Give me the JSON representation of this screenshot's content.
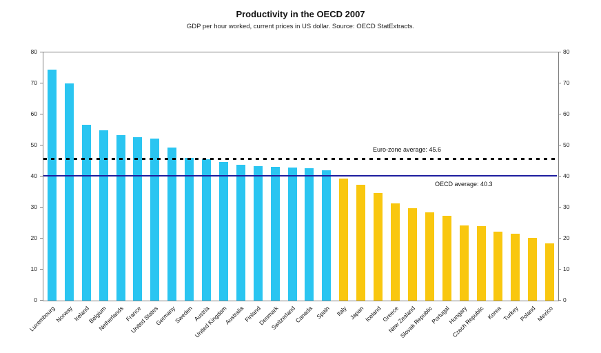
{
  "title": "Productivity in the OECD 2007",
  "subtitle": "GDP per hour worked, current prices in US dollar. Source: OECD StatExtracts.",
  "colors": {
    "above_oecd_average_bar": "#2AC5F1",
    "below_oecd_average_bar": "#F9C70F",
    "oecd_average_line": "#1C1C9E",
    "eurozone_average_line": "#000000",
    "axis_frame": "#7D7D7D"
  },
  "chart_data": {
    "type": "bar",
    "title": "Productivity in the OECD 2007",
    "subtitle": "GDP per hour worked, current prices in US dollar. Source: OECD StatExtracts.",
    "categories": [
      "Luxembourg",
      "Norway",
      "Ireland",
      "Belgium",
      "Netherlands",
      "France",
      "United States",
      "Germany",
      "Sweden",
      "Austria",
      "United Kingdom",
      "Australia",
      "Finland",
      "Denmark",
      "Switzerland",
      "Canada",
      "Spain",
      "Italy",
      "Japan",
      "Iceland",
      "Greece",
      "New Zealand",
      "Slovak Republic",
      "Portugal",
      "Hungary",
      "Czech Republic",
      "Korea",
      "Turkey",
      "Poland",
      "Mexico"
    ],
    "values": [
      74.5,
      70.0,
      56.7,
      54.9,
      53.4,
      52.7,
      52.2,
      49.4,
      46.0,
      45.6,
      44.6,
      43.7,
      43.3,
      43.1,
      42.8,
      42.6,
      42.0,
      39.3,
      37.3,
      34.7,
      31.4,
      29.9,
      28.4,
      27.3,
      24.2,
      24.0,
      22.2,
      21.6,
      20.2,
      18.4
    ],
    "bar_colors": [
      "#2AC5F1",
      "#2AC5F1",
      "#2AC5F1",
      "#2AC5F1",
      "#2AC5F1",
      "#2AC5F1",
      "#2AC5F1",
      "#2AC5F1",
      "#2AC5F1",
      "#2AC5F1",
      "#2AC5F1",
      "#2AC5F1",
      "#2AC5F1",
      "#2AC5F1",
      "#2AC5F1",
      "#2AC5F1",
      "#2AC5F1",
      "#F9C70F",
      "#F9C70F",
      "#F9C70F",
      "#F9C70F",
      "#F9C70F",
      "#F9C70F",
      "#F9C70F",
      "#F9C70F",
      "#F9C70F",
      "#F9C70F",
      "#F9C70F",
      "#F9C70F",
      "#F9C70F"
    ],
    "xlabel": "",
    "ylabel": "",
    "ylim": [
      0,
      80
    ],
    "yticks": [
      0,
      10,
      20,
      30,
      40,
      50,
      60,
      70,
      80
    ],
    "grid": false,
    "mirrored_right_axis": true,
    "legend": "none",
    "reference_lines": [
      {
        "label": "Euro-zone average: 45.6",
        "value": 45.6,
        "style": "dashed",
        "color": "#000000"
      },
      {
        "label": "OECD average: 40.3",
        "value": 40.3,
        "style": "solid",
        "color": "#1C1C9E"
      }
    ]
  }
}
